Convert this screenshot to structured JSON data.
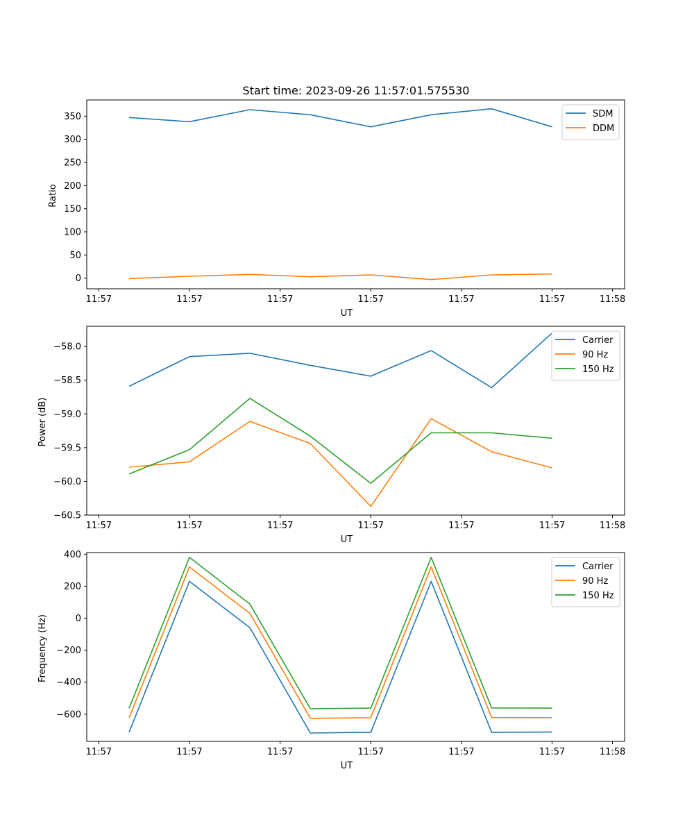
{
  "figure_title": "Start time: 2023-09-26 11:57:01.575530",
  "chart_data": [
    {
      "type": "line",
      "ylabel": "Ratio",
      "xlabel": "UT",
      "x": [
        1,
        2,
        3,
        4,
        5,
        6,
        7,
        8
      ],
      "xlim": [
        0.3,
        9.2
      ],
      "xticks": [
        0.5,
        2,
        3.5,
        5,
        6.5,
        8,
        9
      ],
      "xtick_labels": [
        "11:57",
        "11:57",
        "11:57",
        "11:57",
        "11:57",
        "11:57",
        "11:58"
      ],
      "ylim": [
        -23,
        385
      ],
      "yticks": [
        0,
        50,
        100,
        150,
        200,
        250,
        300,
        350
      ],
      "ytick_labels": [
        "0",
        "50",
        "100",
        "150",
        "200",
        "250",
        "300",
        "350"
      ],
      "legend_position": "top-right",
      "series": [
        {
          "name": "SDM",
          "color": "#1f77b4",
          "values": [
            347,
            338,
            364,
            353,
            327,
            353,
            366,
            327
          ]
        },
        {
          "name": "DDM",
          "color": "#ff7f0e",
          "values": [
            -1,
            4,
            8,
            3,
            7,
            -3,
            7,
            9
          ]
        }
      ]
    },
    {
      "type": "line",
      "ylabel": "Power (dB)",
      "xlabel": "UT",
      "x": [
        1,
        2,
        3,
        4,
        5,
        6,
        7,
        8
      ],
      "xlim": [
        0.3,
        9.2
      ],
      "xticks": [
        0.5,
        2,
        3.5,
        5,
        6.5,
        8,
        9
      ],
      "xtick_labels": [
        "11:57",
        "11:57",
        "11:57",
        "11:57",
        "11:57",
        "11:57",
        "11:58"
      ],
      "ylim": [
        -60.5,
        -57.7
      ],
      "yticks": [
        -60.5,
        -60.0,
        -59.5,
        -59.0,
        -58.5,
        -58.0
      ],
      "ytick_labels": [
        "−60.5",
        "−60.0",
        "−59.5",
        "−59.0",
        "−58.5",
        "−58.0"
      ],
      "legend_position": "top-right",
      "series": [
        {
          "name": "Carrier",
          "color": "#1f77b4",
          "values": [
            -58.59,
            -58.15,
            -58.1,
            -58.28,
            -58.44,
            -58.06,
            -58.61,
            -57.8
          ]
        },
        {
          "name": "90 Hz",
          "color": "#ff7f0e",
          "values": [
            -59.79,
            -59.71,
            -59.11,
            -59.44,
            -60.37,
            -59.07,
            -59.56,
            -59.8
          ]
        },
        {
          "name": "150 Hz",
          "color": "#2ca02c",
          "values": [
            -59.89,
            -59.53,
            -58.77,
            -59.33,
            -60.03,
            -59.28,
            -59.28,
            -59.36
          ]
        }
      ]
    },
    {
      "type": "line",
      "ylabel": "Frequency (Hz)",
      "xlabel": "UT",
      "x": [
        1,
        2,
        3,
        4,
        5,
        6,
        7,
        8
      ],
      "xlim": [
        0.3,
        9.2
      ],
      "xticks": [
        0.5,
        2,
        3.5,
        5,
        6.5,
        8,
        9
      ],
      "xtick_labels": [
        "11:57",
        "11:57",
        "11:57",
        "11:57",
        "11:57",
        "11:57",
        "11:58"
      ],
      "ylim": [
        -770,
        410
      ],
      "yticks": [
        -600,
        -400,
        -200,
        0,
        200,
        400
      ],
      "ytick_labels": [
        "−600",
        "−400",
        "−200",
        "0",
        "200",
        "400"
      ],
      "legend_position": "top-right",
      "series": [
        {
          "name": "Carrier",
          "color": "#1f77b4",
          "values": [
            -713,
            230,
            -60,
            -718,
            -713,
            230,
            -713,
            -712
          ]
        },
        {
          "name": "90 Hz",
          "color": "#ff7f0e",
          "values": [
            -623,
            320,
            30,
            -626,
            -622,
            320,
            -621,
            -622
          ]
        },
        {
          "name": "150 Hz",
          "color": "#2ca02c",
          "values": [
            -563,
            380,
            88,
            -566,
            -562,
            380,
            -561,
            -562
          ]
        }
      ]
    }
  ]
}
